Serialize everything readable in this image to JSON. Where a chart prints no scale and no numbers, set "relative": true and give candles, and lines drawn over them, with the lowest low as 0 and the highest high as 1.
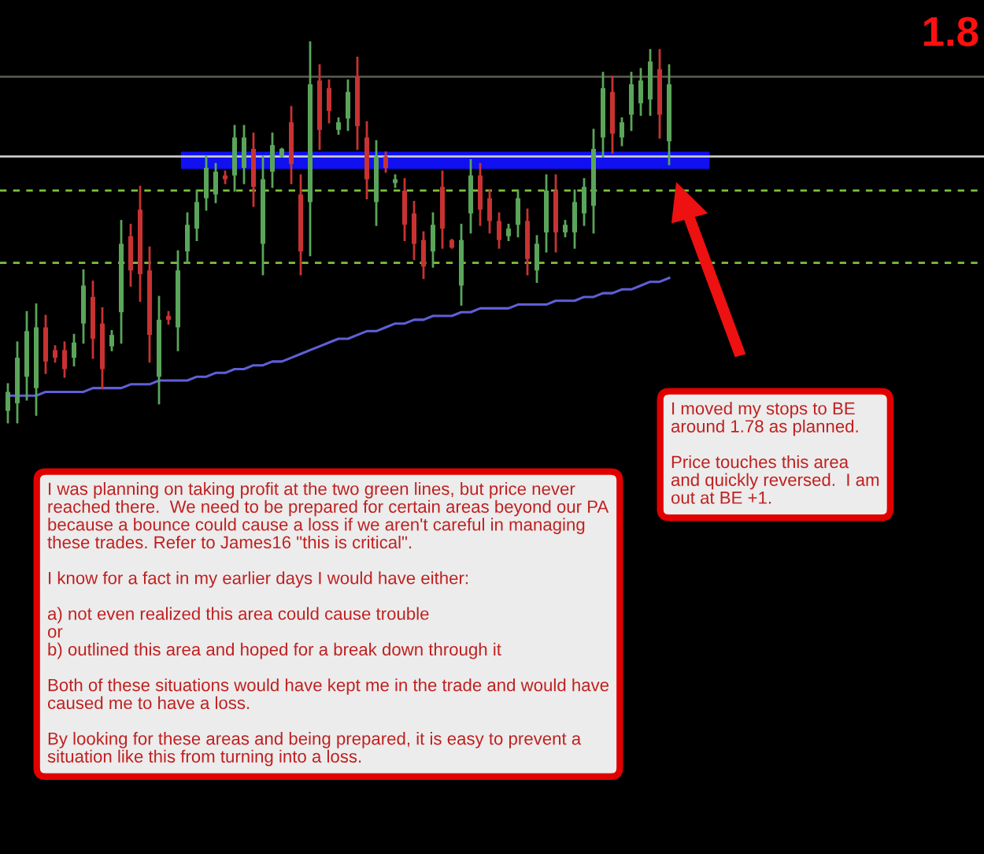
{
  "chart_data": {
    "type": "candlestick",
    "relative": true,
    "categories": [
      null,
      null,
      null,
      null,
      null,
      null,
      null,
      null,
      null,
      null,
      null,
      null,
      null,
      null,
      null,
      null,
      null,
      null,
      null,
      null,
      null,
      null,
      null,
      null,
      null,
      null,
      null,
      null,
      null,
      null,
      null,
      null,
      null,
      null,
      null,
      null,
      null,
      null,
      null,
      null,
      null,
      null,
      null,
      null,
      null,
      null,
      null,
      null,
      null,
      null,
      null,
      null,
      null,
      null,
      null,
      null,
      null,
      null,
      null,
      null,
      null,
      null,
      null,
      null,
      null,
      null,
      null,
      null,
      null,
      null,
      null
    ],
    "ohlc": [
      [
        0.03,
        0.1,
        0.0,
        0.08
      ],
      [
        0.05,
        0.21,
        0.0,
        0.17
      ],
      [
        0.12,
        0.29,
        0.06,
        0.24
      ],
      [
        0.09,
        0.31,
        0.02,
        0.25
      ],
      [
        0.25,
        0.28,
        0.13,
        0.16
      ],
      [
        0.19,
        0.2,
        0.16,
        0.17
      ],
      [
        0.19,
        0.21,
        0.12,
        0.14
      ],
      [
        0.17,
        0.23,
        0.15,
        0.21
      ],
      [
        0.26,
        0.4,
        0.21,
        0.36
      ],
      [
        0.33,
        0.37,
        0.17,
        0.22
      ],
      [
        0.26,
        0.3,
        0.09,
        0.14
      ],
      [
        0.2,
        0.24,
        0.19,
        0.23
      ],
      [
        0.29,
        0.53,
        0.21,
        0.47
      ],
      [
        0.49,
        0.52,
        0.36,
        0.4
      ],
      [
        0.56,
        0.62,
        0.32,
        0.39
      ],
      [
        0.4,
        0.46,
        0.16,
        0.23
      ],
      [
        0.12,
        0.33,
        0.05,
        0.27
      ],
      [
        0.28,
        0.29,
        0.26,
        0.27
      ],
      [
        0.25,
        0.45,
        0.19,
        0.4
      ],
      [
        0.45,
        0.55,
        0.42,
        0.52
      ],
      [
        0.51,
        0.61,
        0.48,
        0.58
      ],
      [
        0.59,
        0.7,
        0.56,
        0.67
      ],
      [
        0.6,
        0.68,
        0.58,
        0.66
      ],
      [
        0.65,
        0.66,
        0.63,
        0.64
      ],
      [
        0.65,
        0.78,
        0.61,
        0.75
      ],
      [
        0.67,
        0.78,
        0.63,
        0.75
      ],
      [
        0.72,
        0.76,
        0.57,
        0.62
      ],
      [
        0.47,
        0.7,
        0.39,
        0.64
      ],
      [
        0.66,
        0.76,
        0.62,
        0.73
      ],
      [
        0.7,
        0.72,
        0.7,
        0.72
      ],
      [
        0.79,
        0.83,
        0.63,
        0.68
      ],
      [
        0.6,
        0.65,
        0.39,
        0.45
      ],
      [
        0.58,
        1.0,
        0.44,
        0.89
      ],
      [
        0.9,
        0.94,
        0.72,
        0.77
      ],
      [
        0.88,
        0.9,
        0.79,
        0.82
      ],
      [
        0.77,
        0.8,
        0.76,
        0.79
      ],
      [
        0.8,
        0.9,
        0.77,
        0.87
      ],
      [
        0.91,
        0.96,
        0.72,
        0.78
      ],
      [
        0.75,
        0.79,
        0.59,
        0.64
      ],
      [
        0.58,
        0.74,
        0.52,
        0.7
      ],
      [
        0.7,
        0.71,
        0.66,
        0.67
      ],
      [
        0.63,
        0.65,
        0.62,
        0.64
      ],
      [
        0.61,
        0.64,
        0.48,
        0.52
      ],
      [
        0.55,
        0.58,
        0.43,
        0.47
      ],
      [
        0.48,
        0.5,
        0.38,
        0.41
      ],
      [
        0.45,
        0.55,
        0.41,
        0.52
      ],
      [
        0.62,
        0.66,
        0.46,
        0.51
      ],
      [
        0.48,
        0.48,
        0.46,
        0.46
      ],
      [
        0.36,
        0.52,
        0.31,
        0.48
      ],
      [
        0.55,
        0.69,
        0.5,
        0.65
      ],
      [
        0.65,
        0.68,
        0.52,
        0.56
      ],
      [
        0.59,
        0.61,
        0.5,
        0.53
      ],
      [
        0.53,
        0.55,
        0.46,
        0.48
      ],
      [
        0.49,
        0.52,
        0.48,
        0.51
      ],
      [
        0.52,
        0.61,
        0.49,
        0.59
      ],
      [
        0.53,
        0.56,
        0.39,
        0.43
      ],
      [
        0.4,
        0.49,
        0.37,
        0.47
      ],
      [
        0.5,
        0.65,
        0.45,
        0.61
      ],
      [
        0.61,
        0.65,
        0.45,
        0.5
      ],
      [
        0.5,
        0.53,
        0.49,
        0.52
      ],
      [
        0.5,
        0.61,
        0.46,
        0.58
      ],
      [
        0.55,
        0.64,
        0.52,
        0.62
      ],
      [
        0.57,
        0.77,
        0.5,
        0.72
      ],
      [
        0.75,
        0.92,
        0.7,
        0.88
      ],
      [
        0.87,
        0.91,
        0.71,
        0.76
      ],
      [
        0.75,
        0.8,
        0.73,
        0.79
      ],
      [
        0.81,
        0.92,
        0.77,
        0.89
      ],
      [
        0.84,
        0.93,
        0.81,
        0.9
      ],
      [
        0.85,
        0.98,
        0.81,
        0.95
      ],
      [
        0.93,
        0.98,
        0.75,
        0.81
      ],
      [
        0.74,
        0.94,
        0.68,
        0.89
      ]
    ],
    "colors": [
      "#5aa55a",
      "#5aa55a",
      "#5aa55a",
      "#5aa55a",
      "#c83232",
      "#c83232",
      "#c83232",
      "#5aa55a",
      "#5aa55a",
      "#c83232",
      "#c83232",
      "#5aa55a",
      "#5aa55a",
      "#c83232",
      "#c83232",
      "#c83232",
      "#5aa55a",
      "#c83232",
      "#5aa55a",
      "#5aa55a",
      "#5aa55a",
      "#5aa55a",
      "#5aa55a",
      "#c83232",
      "#5aa55a",
      "#5aa55a",
      "#c83232",
      "#5aa55a",
      "#5aa55a",
      "#5aa55a",
      "#c83232",
      "#c83232",
      "#5aa55a",
      "#c83232",
      "#c83232",
      "#5aa55a",
      "#5aa55a",
      "#c83232",
      "#c83232",
      "#5aa55a",
      "#c83232",
      "#5aa55a",
      "#c83232",
      "#c83232",
      "#c83232",
      "#5aa55a",
      "#c83232",
      "#c83232",
      "#5aa55a",
      "#5aa55a",
      "#c83232",
      "#c83232",
      "#c83232",
      "#5aa55a",
      "#5aa55a",
      "#c83232",
      "#5aa55a",
      "#5aa55a",
      "#c83232",
      "#5aa55a",
      "#5aa55a",
      "#5aa55a",
      "#5aa55a",
      "#5aa55a",
      "#c83232",
      "#5aa55a",
      "#5aa55a",
      "#5aa55a",
      "#5aa55a",
      "#c83232",
      "#5aa55a"
    ],
    "series": [
      {
        "type": "line",
        "color": "#5f5fd8",
        "values": [
          0.07,
          0.07,
          0.07,
          0.07,
          0.08,
          0.08,
          0.08,
          0.08,
          0.08,
          0.09,
          0.09,
          0.09,
          0.09,
          0.1,
          0.1,
          0.1,
          0.11,
          0.11,
          0.11,
          0.11,
          0.12,
          0.12,
          0.13,
          0.13,
          0.14,
          0.14,
          0.15,
          0.15,
          0.16,
          0.16,
          0.17,
          0.18,
          0.19,
          0.2,
          0.21,
          0.22,
          0.22,
          0.23,
          0.24,
          0.24,
          0.25,
          0.26,
          0.26,
          0.27,
          0.27,
          0.28,
          0.28,
          0.28,
          0.29,
          0.29,
          0.3,
          0.3,
          0.3,
          0.3,
          0.31,
          0.31,
          0.31,
          0.31,
          0.32,
          0.32,
          0.32,
          0.33,
          0.33,
          0.34,
          0.34,
          0.35,
          0.35,
          0.36,
          0.37,
          0.37,
          0.38
        ]
      }
    ],
    "ref_lines": [
      {
        "axis": "y",
        "value": 0.91,
        "color": "#555548",
        "line_style": "solid"
      },
      {
        "axis": "y",
        "value": 0.7,
        "color": "#c8c8c8",
        "line_style": "solid"
      },
      {
        "axis": "y",
        "value": 0.61,
        "color": "#7cc23c",
        "line_style": "dashed"
      },
      {
        "axis": "y",
        "value": 0.42,
        "color": "#7cc23c",
        "line_style": "dashed"
      }
    ],
    "bands": [
      {
        "axis": "y",
        "from": 0.67,
        "to": 0.71,
        "color": "#1010f0"
      }
    ],
    "annotations": [
      "I was planning on taking profit at the two green lines, but price never\nreached there.  We need to be prepared for certain areas beyond our PA\nbecause a bounce could cause a loss if we aren't careful in managing\nthese trades. Refer to James16 \"this is critical\".\n\nI know for a fact in my earlier days I would have either:\n\na) not even realized this area could cause trouble\nor\nb) outlined this area and hoped for a break down through it\n\nBoth of these situations would have kept me in the trade and would have\ncaused me to have a loss.\n\nBy looking for these areas and being prepared, it is easy to prevent a\nsituation like this from turning into a loss.",
      "I moved my stops to BE\naround 1.78 as planned.\n\nPrice touches this area\nand quickly reversed.  I am\nout at BE +1.",
      "1.8"
    ]
  }
}
